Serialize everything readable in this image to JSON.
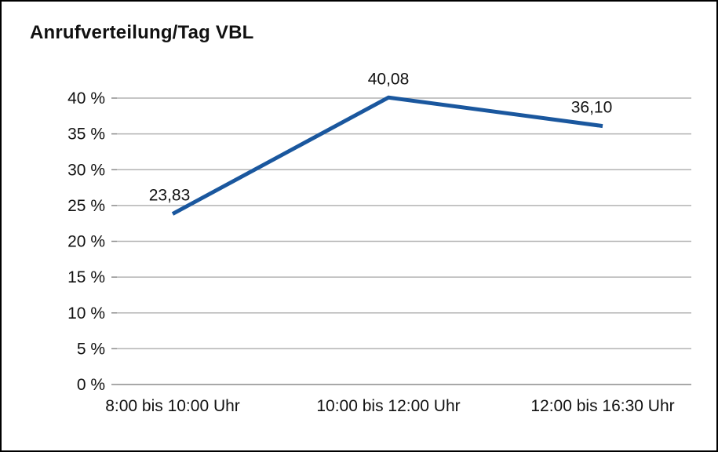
{
  "chart": {
    "title": "Anrufverteilung/Tag VBL"
  },
  "chart_data": {
    "type": "line",
    "title": "Anrufverteilung/Tag VBL",
    "categories": [
      "8:00 bis 10:00 Uhr",
      "10:00 bis 12:00 Uhr",
      "12:00 bis 16:30 Uhr"
    ],
    "values": [
      23.83,
      40.08,
      36.1
    ],
    "value_labels": [
      "23,83",
      "40,08",
      "36,10"
    ],
    "xlabel": "",
    "ylabel": "",
    "ylim": [
      0,
      40
    ],
    "ytick_step": 5,
    "ytick_labels": [
      "0 %",
      "5 %",
      "10 %",
      "15 %",
      "20 %",
      "25 %",
      "30 %",
      "35 %",
      "40 %"
    ],
    "grid": true,
    "legend": "none",
    "line_color": "#1a579e",
    "grid_color": "#b3b3b3",
    "axis_color": "#8c8c8c",
    "text_color": "#111111"
  }
}
